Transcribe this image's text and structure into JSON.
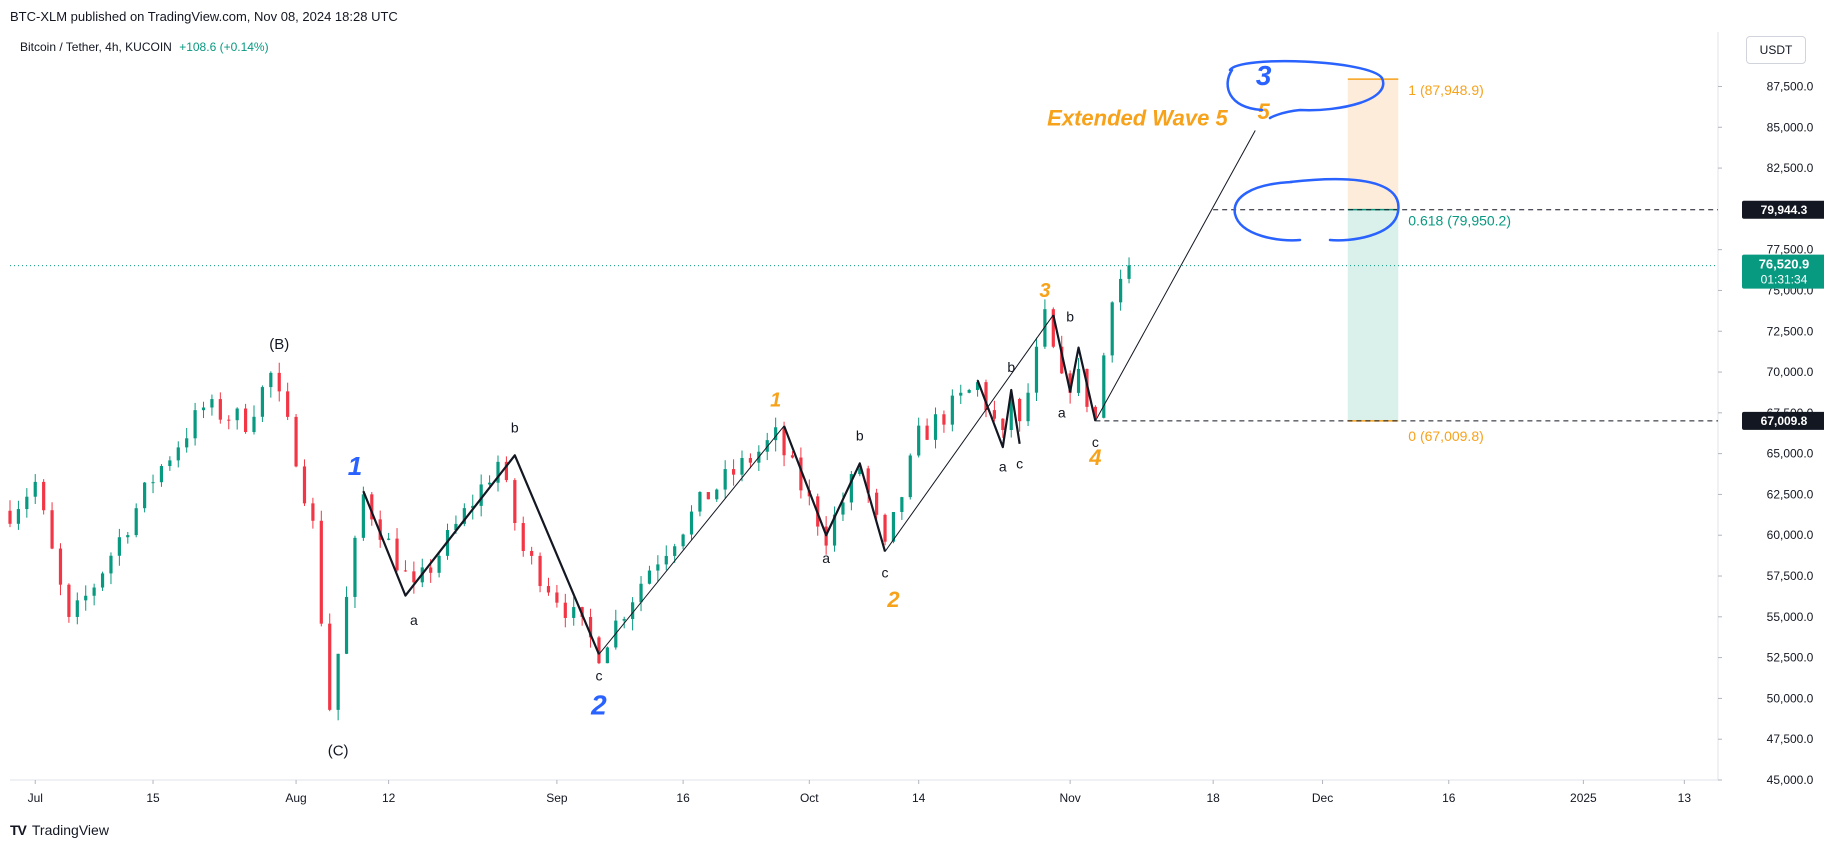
{
  "header": {
    "published": "BTC-XLM published on TradingView.com, Nov 08, 2024 18:28 UTC",
    "symbol": "Bitcoin / Tether, 4h, KUCOIN",
    "change": "+108.6 (+0.14%)",
    "currency": "USDT"
  },
  "footer": {
    "brand": "TradingView",
    "logo": "TV"
  },
  "colors": {
    "up": "#089981",
    "down": "#f23645",
    "blue": "#2962ff",
    "orange": "#f7a21b",
    "wave_line": "#131722"
  },
  "price_tags": {
    "target": "79,944.3",
    "last": "76,520.9",
    "countdown": "01:31:34",
    "base": "67,009.8"
  },
  "chart_data": {
    "type": "candlestick",
    "x_axis_labels": [
      "Jul",
      "15",
      "Aug",
      "12",
      "Sep",
      "16",
      "Oct",
      "14",
      "Nov",
      "18",
      "Dec",
      "16",
      "2025",
      "13"
    ],
    "y_ticks": [
      "87,500.0",
      "85,000.0",
      "82,500.0",
      "77,500.0",
      "75,000.0",
      "72,500.0",
      "70,000.0",
      "67,500.0",
      "65,000.0",
      "62,500.0",
      "60,000.0",
      "57,500.0",
      "55,000.0",
      "52,500.0",
      "50,000.0",
      "47,500.0",
      "45,000.0"
    ],
    "ylim": [
      45000,
      89000
    ],
    "last_price": 76520.9,
    "price_path": [
      [
        "2024-06-28",
        61500
      ],
      [
        "2024-07-01",
        63200
      ],
      [
        "2024-07-05",
        54500
      ],
      [
        "2024-07-08",
        57000
      ],
      [
        "2024-07-15",
        63500
      ],
      [
        "2024-07-21",
        67800
      ],
      [
        "2024-07-26",
        67000
      ],
      [
        "2024-07-29",
        69800
      ],
      [
        "2024-08-01",
        65000
      ],
      [
        "2024-08-03",
        60500
      ],
      [
        "2024-08-05",
        49500
      ],
      [
        "2024-08-07",
        56000
      ],
      [
        "2024-08-09",
        62400
      ],
      [
        "2024-08-15",
        56500
      ],
      [
        "2024-08-25",
        64500
      ],
      [
        "2024-08-28",
        59000
      ],
      [
        "2024-09-06",
        52900
      ],
      [
        "2024-09-12",
        58000
      ],
      [
        "2024-09-19",
        62500
      ],
      [
        "2024-09-27",
        66000
      ],
      [
        "2024-10-03",
        60000
      ],
      [
        "2024-10-07",
        64200
      ],
      [
        "2024-10-10",
        59000
      ],
      [
        "2024-10-14",
        66000
      ],
      [
        "2024-10-21",
        69200
      ],
      [
        "2024-10-24",
        65800
      ],
      [
        "2024-10-25",
        68500
      ],
      [
        "2024-10-26",
        66500
      ],
      [
        "2024-10-29",
        73200
      ],
      [
        "2024-10-31",
        69200
      ],
      [
        "2024-11-02",
        69600
      ],
      [
        "2024-11-04",
        67100
      ],
      [
        "2024-11-06",
        75000
      ],
      [
        "2024-11-08",
        76520
      ]
    ],
    "wave_lines": [
      {
        "points": [
          [
            "2024-08-09",
            62700
          ],
          [
            "2024-08-14",
            56300
          ],
          [
            "2024-08-27",
            64900
          ],
          [
            "2024-09-06",
            52700
          ]
        ],
        "style": "bold"
      },
      {
        "points": [
          [
            "2024-09-06",
            52700
          ],
          [
            "2024-09-28",
            66700
          ]
        ],
        "style": "thin"
      },
      {
        "points": [
          [
            "2024-09-28",
            66700
          ],
          [
            "2024-10-03",
            60000
          ],
          [
            "2024-10-07",
            64400
          ],
          [
            "2024-10-10",
            59000
          ]
        ],
        "style": "bold"
      },
      {
        "points": [
          [
            "2024-10-10",
            59000
          ],
          [
            "2024-10-30",
            73500
          ]
        ],
        "style": "thin"
      },
      {
        "points": [
          [
            "2024-10-21",
            69500
          ],
          [
            "2024-10-24",
            65400
          ],
          [
            "2024-10-25",
            68900
          ],
          [
            "2024-10-26",
            65600
          ]
        ],
        "style": "bold"
      },
      {
        "points": [
          [
            "2024-10-30",
            73500
          ],
          [
            "2024-11-01",
            68800
          ],
          [
            "2024-11-02",
            71500
          ],
          [
            "2024-11-04",
            67000
          ]
        ],
        "style": "bold"
      },
      {
        "points": [
          [
            "2024-11-04",
            67000
          ],
          [
            "2024-11-23",
            84800
          ]
        ],
        "style": "thin"
      }
    ],
    "wave_labels": [
      {
        "text": "(B)",
        "x": "2024-07-30",
        "y": 71400,
        "color": "#131722",
        "size": 15,
        "weight": "normal",
        "italic": false
      },
      {
        "text": "(C)",
        "x": "2024-08-06",
        "y": 46500,
        "color": "#131722",
        "size": 15,
        "weight": "normal",
        "italic": false
      },
      {
        "text": "1",
        "x": "2024-08-08",
        "y": 63700,
        "color": "#2962ff",
        "size": 26,
        "weight": "bold",
        "italic": true
      },
      {
        "text": "a",
        "x": "2024-08-15",
        "y": 54500,
        "color": "#131722",
        "size": 14,
        "weight": "normal",
        "italic": false
      },
      {
        "text": "b",
        "x": "2024-08-27",
        "y": 66300,
        "color": "#131722",
        "size": 14,
        "weight": "normal",
        "italic": false
      },
      {
        "text": "c",
        "x": "2024-09-06",
        "y": 51100,
        "color": "#131722",
        "size": 14,
        "weight": "normal",
        "italic": false
      },
      {
        "text": "2",
        "x": "2024-09-06",
        "y": 49000,
        "color": "#2962ff",
        "size": 28,
        "weight": "bold",
        "italic": true
      },
      {
        "text": "1",
        "x": "2024-09-27",
        "y": 67900,
        "color": "#f7a21b",
        "size": 20,
        "weight": "bold",
        "italic": true
      },
      {
        "text": "a",
        "x": "2024-10-03",
        "y": 58300,
        "color": "#131722",
        "size": 14,
        "weight": "normal",
        "italic": false
      },
      {
        "text": "b",
        "x": "2024-10-07",
        "y": 65800,
        "color": "#131722",
        "size": 14,
        "weight": "normal",
        "italic": false
      },
      {
        "text": "c",
        "x": "2024-10-10",
        "y": 57400,
        "color": "#131722",
        "size": 14,
        "weight": "normal",
        "italic": false
      },
      {
        "text": "2",
        "x": "2024-10-11",
        "y": 55600,
        "color": "#f7a21b",
        "size": 22,
        "weight": "bold",
        "italic": true
      },
      {
        "text": "a",
        "x": "2024-10-24",
        "y": 63900,
        "color": "#131722",
        "size": 14,
        "weight": "normal",
        "italic": false
      },
      {
        "text": "b",
        "x": "2024-10-25",
        "y": 70000,
        "color": "#131722",
        "size": 14,
        "weight": "normal",
        "italic": false
      },
      {
        "text": "c",
        "x": "2024-10-26",
        "y": 64100,
        "color": "#131722",
        "size": 14,
        "weight": "normal",
        "italic": false
      },
      {
        "text": "3",
        "x": "2024-10-29",
        "y": 74600,
        "color": "#f7a21b",
        "size": 20,
        "weight": "bold",
        "italic": true
      },
      {
        "text": "b",
        "x": "2024-11-01",
        "y": 73100,
        "color": "#131722",
        "size": 14,
        "weight": "normal",
        "italic": false
      },
      {
        "text": "a",
        "x": "2024-10-31",
        "y": 67200,
        "color": "#131722",
        "size": 14,
        "weight": "normal",
        "italic": false
      },
      {
        "text": "c",
        "x": "2024-11-04",
        "y": 65400,
        "color": "#131722",
        "size": 14,
        "weight": "normal",
        "italic": false
      },
      {
        "text": "4",
        "x": "2024-11-04",
        "y": 64300,
        "color": "#f7a21b",
        "size": 22,
        "weight": "bold",
        "italic": true
      },
      {
        "text": "3",
        "x": "2024-11-24",
        "y": 87600,
        "color": "#2962ff",
        "size": 28,
        "weight": "bold",
        "italic": true
      },
      {
        "text": "5",
        "x": "2024-11-24",
        "y": 85500,
        "color": "#f7a21b",
        "size": 22,
        "weight": "bold",
        "italic": true
      },
      {
        "text": "Extended Wave 5",
        "x": "2024-11-09",
        "y": 85100,
        "color": "#f7a21b",
        "size": 22,
        "weight": "bold",
        "italic": true
      }
    ],
    "fibonacci": {
      "x_start": "2024-12-04",
      "x_end": "2024-12-10",
      "levels": [
        {
          "ratio": "1",
          "price": 87948.9,
          "label": "1 (87,948.9)",
          "color": "#f7a21b"
        },
        {
          "ratio": "0.618",
          "price": 79950.2,
          "label": "0.618 (79,950.2)",
          "color": "#089981"
        },
        {
          "ratio": "0",
          "price": 67009.8,
          "label": "0 (67,009.8)",
          "color": "#f7a21b"
        }
      ],
      "upper_zone_color": "#fde9d2",
      "lower_zone_color": "#d6efe9"
    },
    "dashed_levels": [
      {
        "price": 79944.3,
        "x_start": "2024-11-18"
      },
      {
        "price": 67009.8,
        "x_start": "2024-11-04"
      }
    ],
    "annotation_circles": [
      "1 (87,948.9)",
      "0.618 (79,950.2)"
    ]
  }
}
